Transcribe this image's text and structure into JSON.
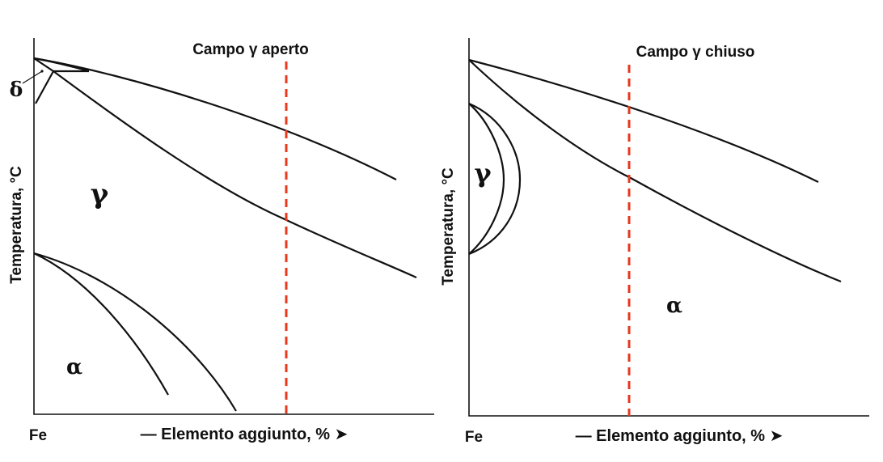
{
  "colors": {
    "line": "#111111",
    "dashed_guide": "#e8391d",
    "background": "#ffffff"
  },
  "diagrams": [
    {
      "id": "open",
      "title": "Campo γ aperto",
      "y_axis_label": "Temperatura, °C",
      "origin_label": "Fe",
      "x_axis_label": "— Elemento aggiunto, % ➤",
      "phase_labels": {
        "delta": "δ",
        "gamma": "γ",
        "alpha": "α"
      }
    },
    {
      "id": "closed",
      "title": "Campo γ chiuso",
      "y_axis_label": "Temperatura, °C",
      "origin_label": "Fe",
      "x_axis_label": "— Elemento aggiunto, % ➤",
      "phase_labels": {
        "gamma": "γ",
        "alpha": "α"
      }
    }
  ]
}
